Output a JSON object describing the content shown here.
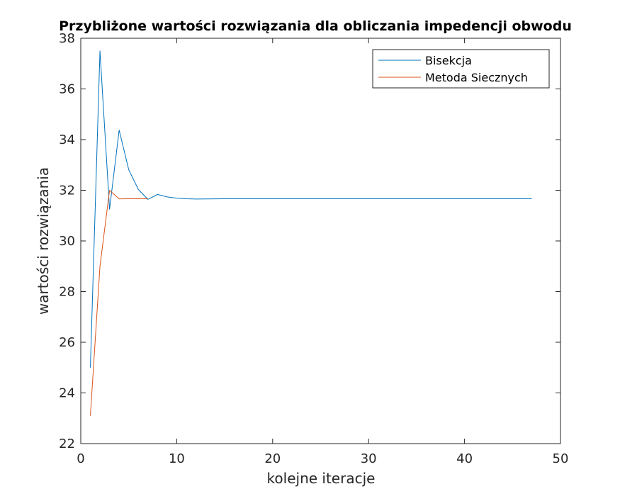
{
  "chart_data": {
    "type": "line",
    "title": "Przybliżone wartości rozwiązania dla obliczania impedencji obwodu",
    "xlabel": "kolejne iteracje",
    "ylabel": "wartości rozwiązania",
    "xlim": [
      0,
      50
    ],
    "ylim": [
      22,
      38
    ],
    "xticks": [
      0,
      10,
      20,
      30,
      40,
      50
    ],
    "yticks": [
      22,
      24,
      26,
      28,
      30,
      32,
      34,
      36,
      38
    ],
    "grid": false,
    "legend_position": "top-right",
    "series": [
      {
        "name": "Bisekcja",
        "color": "#0072bd",
        "x": [
          1,
          2,
          3,
          4,
          5,
          6,
          7,
          8,
          9,
          10,
          11,
          12,
          13,
          14,
          15,
          16,
          17,
          18,
          19,
          20,
          21,
          22,
          23,
          24,
          25,
          26,
          27,
          28,
          29,
          30,
          31,
          32,
          33,
          34,
          35,
          36,
          37,
          38,
          39,
          40,
          41,
          42,
          43,
          44,
          45,
          46,
          47
        ],
        "y": [
          25.0,
          37.5,
          31.25,
          34.375,
          32.8125,
          32.03125,
          31.640625,
          31.8359375,
          31.73828125,
          31.6894531,
          31.6650391,
          31.652832,
          31.6589355,
          31.6619873,
          31.6635132,
          31.6642761,
          31.6638947,
          31.6637039,
          31.6637993,
          31.6637516,
          31.6637278,
          31.6637397,
          31.6637456,
          31.6637427,
          31.6637442,
          31.6637434,
          31.6637438,
          31.6637436,
          31.6637437,
          31.6637437,
          31.6637437,
          31.6637437,
          31.6637437,
          31.6637437,
          31.6637437,
          31.6637437,
          31.6637437,
          31.6637437,
          31.6637437,
          31.6637437,
          31.6637437,
          31.6637437,
          31.6637437,
          31.6637437,
          31.6637437,
          31.6637437,
          31.6637437
        ]
      },
      {
        "name": "Metoda Siecznych",
        "color": "#d95319",
        "x": [
          1,
          2,
          3,
          4,
          5,
          6,
          7
        ],
        "y": [
          23.1,
          29.0,
          32.0,
          31.66,
          31.664,
          31.6637,
          31.6637
        ]
      }
    ]
  }
}
